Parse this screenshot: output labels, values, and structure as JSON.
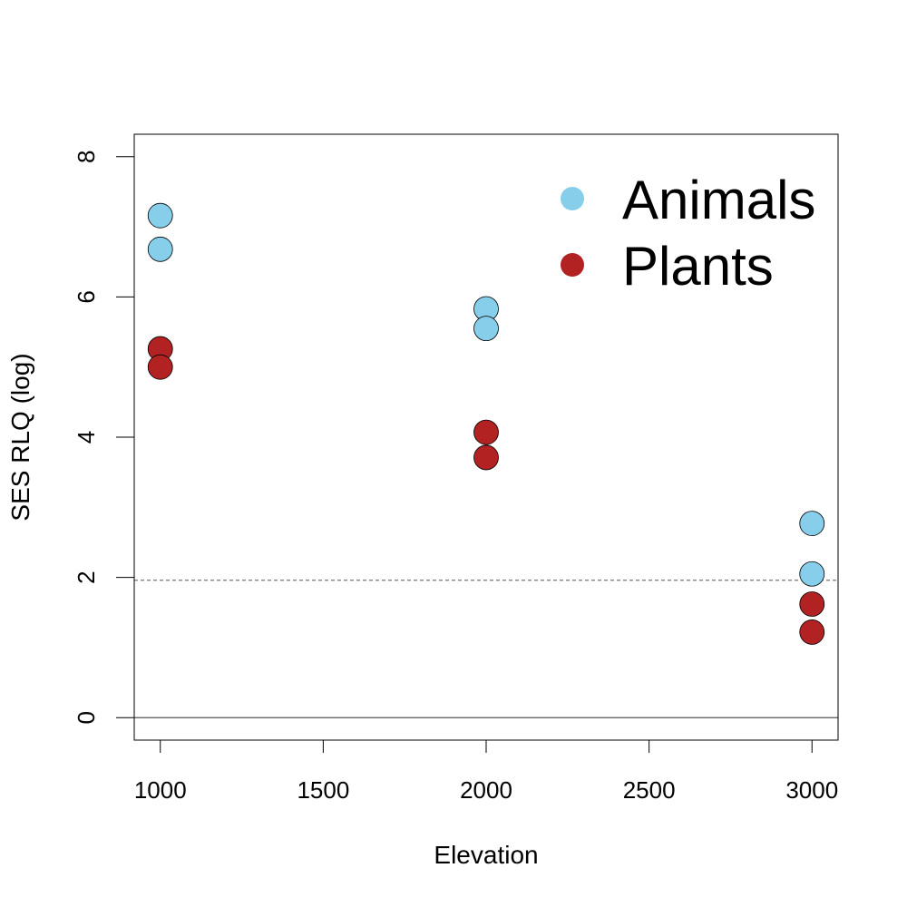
{
  "chart_data": {
    "type": "scatter",
    "xlabel": "Elevation",
    "ylabel": "SES RLQ (log)",
    "xlim": [
      920,
      3080
    ],
    "ylim": [
      -0.32,
      8.32
    ],
    "xticks": [
      1000,
      1500,
      2000,
      2500,
      3000
    ],
    "xtick_labels": [
      "1000",
      "1500",
      "2000",
      "2500",
      "3000"
    ],
    "yticks": [
      0,
      2,
      4,
      6,
      8
    ],
    "ytick_labels": [
      "0",
      "2",
      "4",
      "6",
      "8"
    ],
    "reference_lines": [
      {
        "y": 0,
        "style": "solid",
        "color": "#555555"
      },
      {
        "y": 1.96,
        "style": "dashed",
        "color": "#777777"
      }
    ],
    "grid": false,
    "legend": {
      "position": "top-right",
      "entries": [
        {
          "label": "Animals",
          "color": "#87ceeb"
        },
        {
          "label": "Plants",
          "color": "#b22222"
        }
      ]
    },
    "series": [
      {
        "name": "Animals",
        "color": "#87ceeb",
        "points": [
          {
            "x": 1000,
            "y": 7.16
          },
          {
            "x": 1000,
            "y": 6.68
          },
          {
            "x": 2000,
            "y": 5.83
          },
          {
            "x": 2000,
            "y": 5.55
          },
          {
            "x": 3000,
            "y": 2.77
          },
          {
            "x": 3000,
            "y": 2.05
          }
        ]
      },
      {
        "name": "Plants",
        "color": "#b22222",
        "points": [
          {
            "x": 1000,
            "y": 5.26
          },
          {
            "x": 1000,
            "y": 5.0
          },
          {
            "x": 2000,
            "y": 4.07
          },
          {
            "x": 2000,
            "y": 3.71
          },
          {
            "x": 3000,
            "y": 1.62
          },
          {
            "x": 3000,
            "y": 1.22
          }
        ]
      }
    ]
  }
}
